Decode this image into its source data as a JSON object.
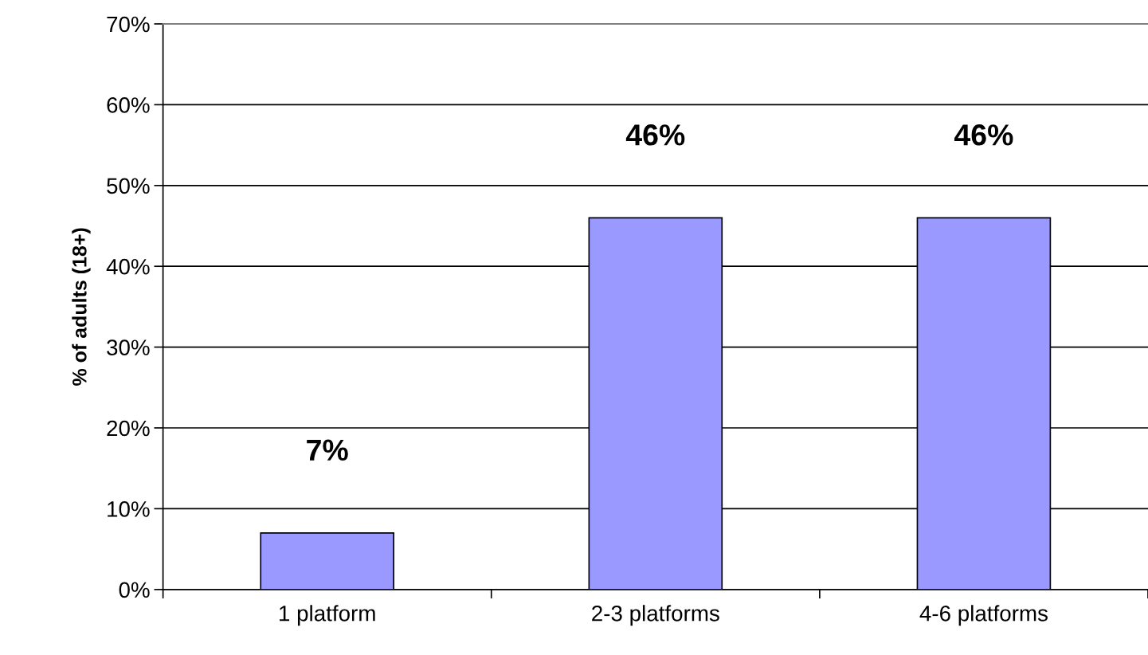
{
  "chart_data": {
    "type": "bar",
    "ylabel": "% of adults (18+)",
    "categories": [
      "1 platform",
      "2-3 platforms",
      "4-6 platforms"
    ],
    "values": [
      7,
      46,
      46
    ],
    "color": "#9999ff",
    "data_labels": true,
    "value_labels": [
      "7%",
      "46%",
      "46%"
    ],
    "ylim": [
      0,
      70
    ],
    "yticks": [
      {
        "value": 0,
        "label": "0%"
      },
      {
        "value": 10,
        "label": "10%"
      },
      {
        "value": 20,
        "label": "20%"
      },
      {
        "value": 30,
        "label": "30%"
      },
      {
        "value": 40,
        "label": "40%"
      },
      {
        "value": 50,
        "label": "50%"
      },
      {
        "value": 60,
        "label": "60%"
      },
      {
        "value": 70,
        "label": "70%"
      }
    ],
    "grid": "y",
    "legend": false
  }
}
